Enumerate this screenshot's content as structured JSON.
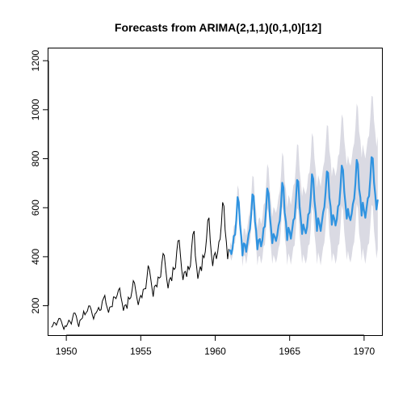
{
  "chart_data": {
    "type": "line",
    "title": "Forecasts from ARIMA(2,1,1)(0,1,0)[12]",
    "xlabel": "",
    "ylabel": "",
    "xlim": [
      1948.8,
      1971.2
    ],
    "ylim": [
      80,
      1250
    ],
    "x_ticks": [
      1950,
      1955,
      1960,
      1965,
      1970
    ],
    "y_ticks": [
      200,
      400,
      600,
      800,
      1000,
      1200
    ],
    "grid": false,
    "colors": {
      "history": "#000000",
      "forecast": "#2f93e0",
      "interval": "#dadae3"
    },
    "history": {
      "start": 1949,
      "frequency": 12,
      "values": [
        112,
        118,
        132,
        129,
        121,
        135,
        148,
        148,
        136,
        119,
        104,
        118,
        115,
        126,
        141,
        135,
        125,
        149,
        170,
        170,
        158,
        133,
        114,
        140,
        145,
        150,
        178,
        163,
        172,
        178,
        199,
        199,
        184,
        162,
        146,
        166,
        171,
        180,
        193,
        181,
        183,
        218,
        230,
        242,
        209,
        191,
        172,
        194,
        196,
        196,
        236,
        235,
        229,
        243,
        264,
        272,
        237,
        211,
        180,
        201,
        204,
        188,
        235,
        227,
        234,
        264,
        302,
        293,
        259,
        229,
        203,
        229,
        242,
        233,
        267,
        269,
        270,
        315,
        364,
        347,
        312,
        274,
        237,
        278,
        284,
        277,
        317,
        313,
        318,
        374,
        413,
        405,
        355,
        306,
        271,
        306,
        315,
        301,
        356,
        348,
        355,
        422,
        465,
        467,
        404,
        347,
        305,
        336,
        340,
        318,
        362,
        348,
        363,
        435,
        491,
        505,
        404,
        359,
        310,
        337,
        360,
        342,
        406,
        396,
        420,
        472,
        548,
        559,
        463,
        407,
        362,
        405,
        417,
        391,
        419,
        461,
        472,
        535,
        622,
        606,
        508,
        461,
        390,
        432
      ]
    },
    "forecast": {
      "start": 1961,
      "frequency": 12,
      "seasonal_increment": 16.7,
      "base_year": [
        417,
        391,
        419,
        461,
        472,
        535,
        622,
        606,
        508,
        461,
        390,
        432
      ]
    }
  }
}
